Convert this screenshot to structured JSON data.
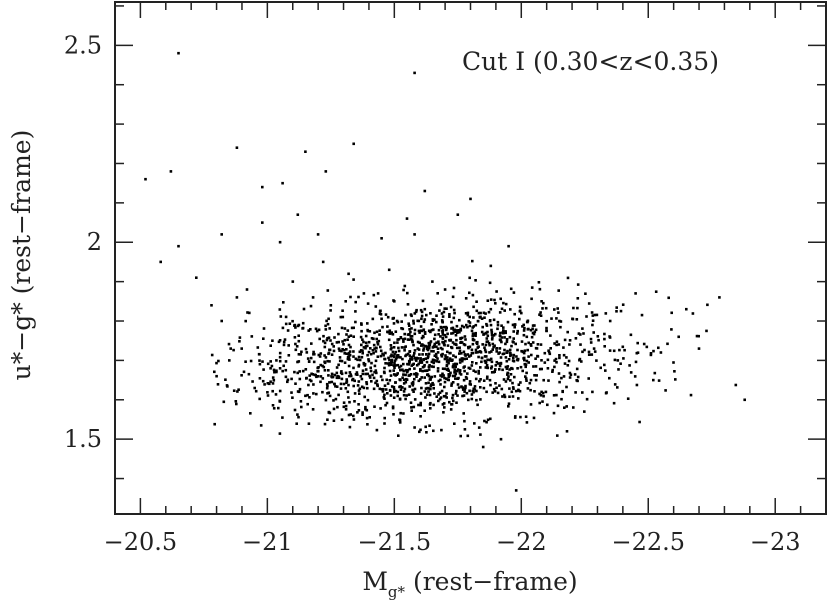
{
  "chart_data": {
    "type": "scatter",
    "annotation": "Cut I (0.30<z<0.35)",
    "xlabel": {
      "main": "M",
      "sub": "g*",
      "rest": " (rest−frame)"
    },
    "ylabel": "u*−g* (rest−frame)",
    "xlim": [
      -20.4,
      -23.2
    ],
    "ylim": [
      1.31,
      2.61
    ],
    "x_ticks": [
      -20.5,
      -21,
      -21.5,
      -22,
      -22.5,
      -23
    ],
    "x_tick_labels": [
      "−20.5",
      "−21",
      "−21.5",
      "−22",
      "−22.5",
      "−23"
    ],
    "y_ticks": [
      1.5,
      2,
      2.5
    ],
    "y_tick_labels": [
      "1.5",
      "2",
      "2.5"
    ],
    "grid": false,
    "series": [
      {
        "marker_color": "#000000",
        "points": [
          [
            -20.65,
            2.48
          ],
          [
            -21.58,
            2.43
          ],
          [
            -21.34,
            2.25
          ],
          [
            -21.15,
            2.23
          ],
          [
            -20.88,
            2.24
          ],
          [
            -21.23,
            2.18
          ],
          [
            -20.52,
            2.16
          ],
          [
            -20.62,
            2.18
          ],
          [
            -20.98,
            2.14
          ],
          [
            -21.06,
            2.15
          ],
          [
            -21.62,
            2.13
          ],
          [
            -21.8,
            2.11
          ],
          [
            -21.75,
            2.07
          ],
          [
            -21.55,
            2.06
          ],
          [
            -20.98,
            2.05
          ],
          [
            -21.12,
            2.07
          ],
          [
            -21.2,
            2.02
          ],
          [
            -21.58,
            2.02
          ],
          [
            -21.05,
            2.0
          ],
          [
            -20.82,
            2.02
          ],
          [
            -20.65,
            1.99
          ],
          [
            -21.95,
            1.99
          ],
          [
            -21.45,
            2.01
          ],
          [
            -20.58,
            1.95
          ],
          [
            -20.72,
            1.91
          ],
          [
            -21.88,
            1.94
          ],
          [
            -22.78,
            1.86
          ],
          [
            -22.08,
            1.85
          ],
          [
            -21.32,
            1.92
          ],
          [
            -21.7,
            1.88
          ],
          [
            -22.65,
            1.83
          ],
          [
            -22.45,
            1.87
          ],
          [
            -22.08,
            1.62
          ],
          [
            -22.38,
            1.7
          ],
          [
            -22.55,
            1.72
          ],
          [
            -22.35,
            1.8
          ],
          [
            -22.88,
            1.6
          ],
          [
            -22.28,
            1.62
          ],
          [
            -21.92,
            1.5
          ],
          [
            -21.85,
            1.48
          ],
          [
            -22.18,
            1.52
          ],
          [
            -21.98,
            1.37
          ],
          [
            -20.82,
            1.8
          ],
          [
            -20.78,
            1.84
          ],
          [
            -20.85,
            1.7
          ],
          [
            -20.95,
            1.63
          ],
          [
            -21.05,
            1.68
          ],
          [
            -20.8,
            1.66
          ],
          [
            -21.15,
            1.61
          ],
          [
            -21.02,
            1.75
          ],
          [
            -22.52,
            1.65
          ],
          [
            -22.7,
            1.73
          ],
          [
            -22.62,
            1.76
          ],
          [
            -20.88,
            1.86
          ],
          [
            -20.92,
            1.88
          ],
          [
            -21.1,
            1.9
          ],
          [
            -21.18,
            1.86
          ],
          [
            -21.25,
            1.84
          ],
          [
            -21.38,
            1.87
          ],
          [
            -21.5,
            1.85
          ],
          [
            -21.62,
            1.83
          ],
          [
            -21.88,
            1.83
          ],
          [
            -22.0,
            1.82
          ],
          [
            -22.15,
            1.8
          ],
          [
            -22.28,
            1.79
          ],
          [
            -21.22,
            1.95
          ],
          [
            -21.48,
            1.93
          ],
          [
            -21.65,
            1.9
          ]
        ],
        "cluster": {
          "count": 1700,
          "center_x": -21.65,
          "center_y": 1.7,
          "spread_x": 0.36,
          "spread_y": 0.075,
          "slope": 0.12
        }
      }
    ]
  }
}
